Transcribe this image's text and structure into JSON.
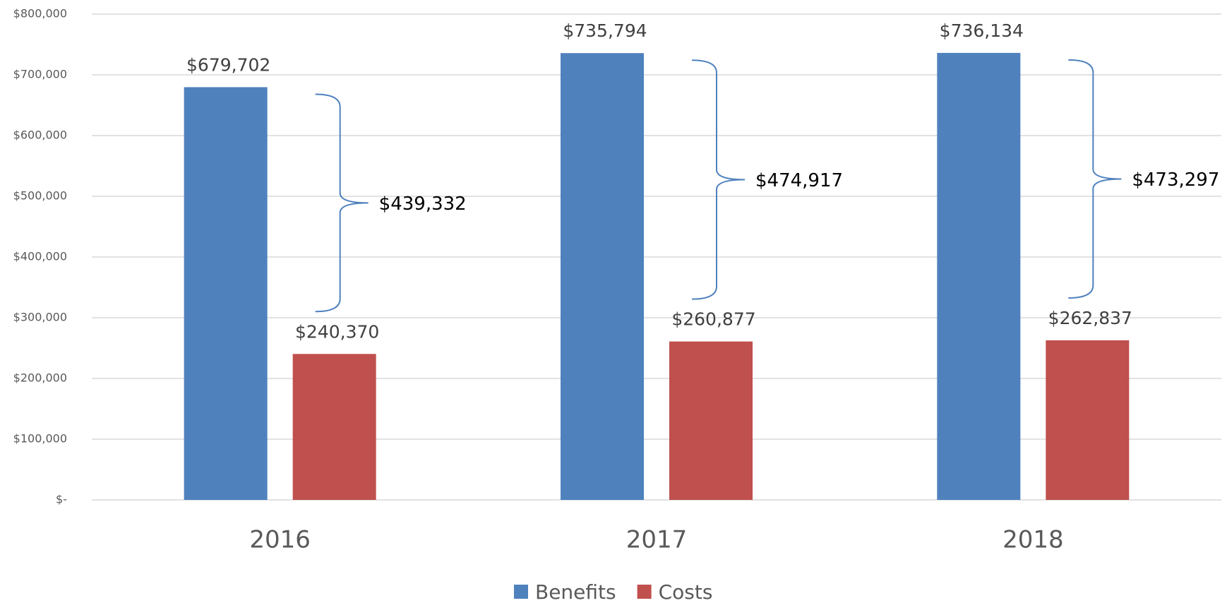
{
  "chart_data": {
    "type": "bar",
    "categories": [
      "2016",
      "2017",
      "2018"
    ],
    "series": [
      {
        "name": "Benefits",
        "color": "#4f81bd",
        "values": [
          679702,
          735794,
          736134
        ],
        "value_labels": [
          "$679,702",
          "$735,794",
          "$736,134"
        ]
      },
      {
        "name": "Costs",
        "color": "#c0504d",
        "values": [
          240370,
          260877,
          262837
        ],
        "value_labels": [
          "$240,370",
          "$260,877",
          "$262,837"
        ]
      }
    ],
    "differences": [
      {
        "value": 439332,
        "label": "$439,332"
      },
      {
        "value": 474917,
        "label": "$474,917"
      },
      {
        "value": 473297,
        "label": "$473,297"
      }
    ],
    "ylim": [
      0,
      800000
    ],
    "yticks": [
      {
        "value": 0,
        "label": "$-"
      },
      {
        "value": 100000,
        "label": "$100,000"
      },
      {
        "value": 200000,
        "label": "$200,000"
      },
      {
        "value": 300000,
        "label": "$300,000"
      },
      {
        "value": 400000,
        "label": "$400,000"
      },
      {
        "value": 500000,
        "label": "$500,000"
      },
      {
        "value": 600000,
        "label": "$600,000"
      },
      {
        "value": 700000,
        "label": "$700,000"
      },
      {
        "value": 800000,
        "label": "$800,000"
      }
    ],
    "grid": true,
    "legend": "bottom"
  }
}
